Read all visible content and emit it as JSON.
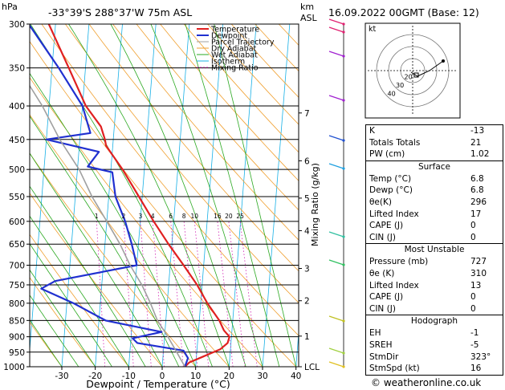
{
  "header": {
    "location": "-33°39'S  288°37'W  75m  ASL",
    "datetime": "16.09.2022  00GMT  (Base: 12)",
    "hpa_label": "hPa",
    "km_label": "km",
    "asl_label": "ASL"
  },
  "chart_data": {
    "type": "line",
    "subtype": "skew-T log-p",
    "xlabel": "Dewpoint / Temperature (°C)",
    "ylabel_right": "Mixing Ratio (g/kg)",
    "x_ticks": [
      -30,
      -20,
      -10,
      0,
      10,
      20,
      30,
      40
    ],
    "x_tick_labels": [
      "-30",
      "-20",
      "-10",
      "0",
      "10",
      "20",
      "30",
      "40"
    ],
    "pressure_levels": [
      300,
      350,
      400,
      450,
      500,
      550,
      600,
      650,
      700,
      750,
      800,
      850,
      900,
      950,
      1000
    ],
    "pressure_labels": [
      "300",
      "350",
      "400",
      "450",
      "500",
      "550",
      "600",
      "650",
      "700",
      "750",
      "800",
      "850",
      "900",
      "950",
      "1000"
    ],
    "km_ticks": [
      {
        "label": "7",
        "p": 410
      },
      {
        "label": "6",
        "p": 485
      },
      {
        "label": "5",
        "p": 553
      },
      {
        "label": "4",
        "p": 620
      },
      {
        "label": "3",
        "p": 708
      },
      {
        "label": "2",
        "p": 793
      },
      {
        "label": "1",
        "p": 898
      },
      {
        "label": "LCL",
        "p": 1000
      }
    ],
    "mixing_ratio_labels": [
      "1",
      "2",
      "3",
      "4",
      "6",
      "8",
      "10",
      "16",
      "20",
      "25"
    ],
    "mixing_ratio_values": [
      1,
      2,
      3,
      4,
      6,
      8,
      10,
      16,
      20,
      25
    ],
    "legend": [
      "Temperature",
      "Dewpoint",
      "Parcel Trajectory",
      "Dry Adiabat",
      "Wet Adiabat",
      "Isotherm",
      "Mixing Ratio"
    ],
    "legend_placement": "top-left",
    "series": [
      {
        "name": "Temperature",
        "color": "#e02020",
        "points": [
          [
            1000,
            6.8
          ],
          [
            985,
            8
          ],
          [
            970,
            11
          ],
          [
            940,
            17
          ],
          [
            920,
            19
          ],
          [
            900,
            19.4
          ],
          [
            880,
            17.6
          ],
          [
            850,
            16
          ],
          [
            800,
            12
          ],
          [
            750,
            8.5
          ],
          [
            700,
            4
          ],
          [
            650,
            -1
          ],
          [
            600,
            -6
          ],
          [
            550,
            -11
          ],
          [
            500,
            -16.5
          ],
          [
            460,
            -22
          ],
          [
            450,
            -22.5
          ],
          [
            430,
            -24
          ],
          [
            400,
            -29
          ],
          [
            350,
            -35
          ],
          [
            300,
            -42
          ]
        ]
      },
      {
        "name": "Dewpoint",
        "color": "#2030d0",
        "points": [
          [
            1000,
            6.8
          ],
          [
            970,
            7.5
          ],
          [
            945,
            6
          ],
          [
            920,
            -8
          ],
          [
            905,
            -9.5
          ],
          [
            885,
            -1
          ],
          [
            850,
            -18
          ],
          [
            800,
            -28
          ],
          [
            760,
            -38
          ],
          [
            740,
            -34
          ],
          [
            700,
            -10
          ],
          [
            650,
            -12
          ],
          [
            600,
            -14.5
          ],
          [
            550,
            -18
          ],
          [
            505,
            -19.5
          ],
          [
            495,
            -27
          ],
          [
            470,
            -24
          ],
          [
            450,
            -40
          ],
          [
            440,
            -27
          ],
          [
            400,
            -30
          ],
          [
            350,
            -38
          ],
          [
            300,
            -48
          ]
        ]
      },
      {
        "name": "Parcel Trajectory",
        "color": "#a0a0a0",
        "points": [
          [
            1000,
            6.8
          ],
          [
            950,
            4
          ],
          [
            900,
            1
          ],
          [
            850,
            -2.5
          ],
          [
            800,
            -5
          ],
          [
            750,
            -8
          ],
          [
            700,
            -12
          ],
          [
            650,
            -15.5
          ],
          [
            600,
            -20
          ],
          [
            550,
            -25
          ],
          [
            500,
            -29.5
          ],
          [
            450,
            -36
          ],
          [
            400,
            -42
          ],
          [
            350,
            -50
          ],
          [
            300,
            -59
          ]
        ]
      }
    ]
  },
  "hodograph": {
    "label": "kt",
    "ring_labels": [
      "40",
      "30",
      "20"
    ]
  },
  "stats": {
    "top": [
      {
        "label": "K",
        "value": "-13"
      },
      {
        "label": "Totals Totals",
        "value": "21"
      },
      {
        "label": "PW (cm)",
        "value": "1.02"
      }
    ],
    "surface": {
      "title": "Surface",
      "rows": [
        {
          "label": "Temp (°C)",
          "value": "6.8"
        },
        {
          "label": "Dewp (°C)",
          "value": "6.8"
        },
        {
          "label": "θe(K)",
          "value": "296"
        },
        {
          "label": "Lifted Index",
          "value": "17"
        },
        {
          "label": "CAPE (J)",
          "value": "0"
        },
        {
          "label": "CIN (J)",
          "value": "0"
        }
      ]
    },
    "unstable": {
      "title": "Most Unstable",
      "rows": [
        {
          "label": "Pressure (mb)",
          "value": "727"
        },
        {
          "label": "θe (K)",
          "value": "310"
        },
        {
          "label": "Lifted Index",
          "value": "13"
        },
        {
          "label": "CAPE (J)",
          "value": "0"
        },
        {
          "label": "CIN (J)",
          "value": "0"
        }
      ]
    },
    "hodo": {
      "title": "Hodograph",
      "rows": [
        {
          "label": "EH",
          "value": "-1"
        },
        {
          "label": "SREH",
          "value": "-5"
        },
        {
          "label": "StmDir",
          "value": "323°"
        },
        {
          "label": "StmSpd (kt)",
          "value": "16"
        }
      ]
    }
  },
  "footer": "© weatheronline.co.uk"
}
